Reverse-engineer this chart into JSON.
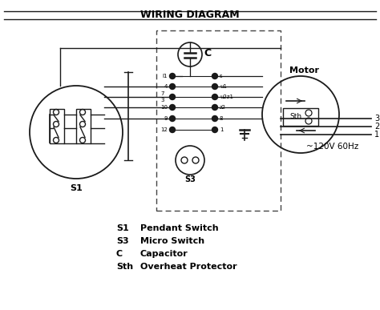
{
  "title": "WIRING DIAGRAM",
  "bg_color": "#ffffff",
  "line_color": "#1a1a1a",
  "legend_items": [
    [
      "S1",
      "Pendant Switch"
    ],
    [
      "S3",
      "Micro Switch"
    ],
    [
      "C",
      "Capacitor"
    ],
    [
      "Sth",
      "Overheat Protector"
    ]
  ],
  "voltage_label": "~120V 60Hz",
  "motor_label": "Motor",
  "s1_label": "S1",
  "s3_label": "S3",
  "c_label": "C",
  "sth_label": "Sth",
  "terminal_labels_left": [
    "l1",
    "4",
    "7",
    "3",
    "10",
    "9",
    "12"
  ],
  "terminal_labels_right": [
    "s",
    "u1",
    "u2z1",
    "z2",
    "8",
    "1"
  ],
  "power_labels": [
    "3",
    "2",
    "1"
  ]
}
